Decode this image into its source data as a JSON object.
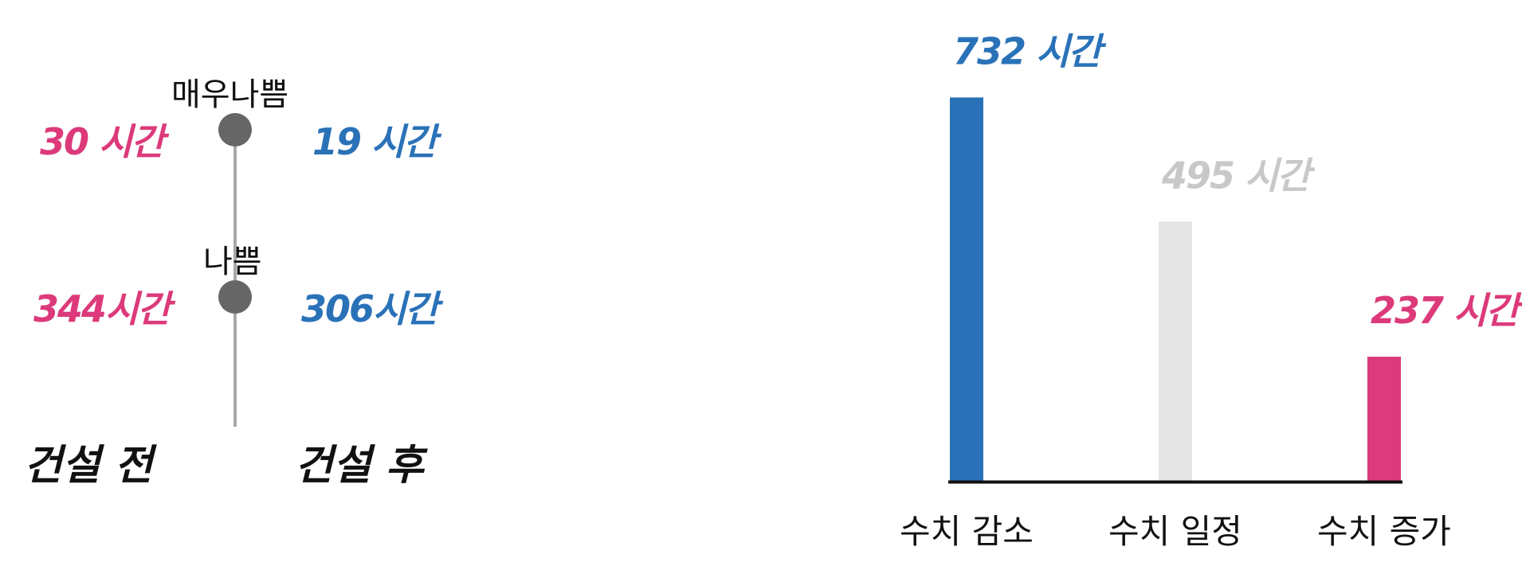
{
  "colors": {
    "decrease": "#2a72b8",
    "constant": "#e5e5e5",
    "increase": "#dc3a7a",
    "constant_label": "#c8c8c8",
    "axis": "#111111"
  },
  "comparison": {
    "before_label": "건설 전",
    "after_label": "건설 후",
    "levels": [
      {
        "name": "매우나쁨",
        "before": "30 시간",
        "after": "19 시간"
      },
      {
        "name": "나쁨",
        "before": "344시간",
        "after": "306시간"
      }
    ]
  },
  "chart_data": {
    "type": "bar",
    "categories": [
      "수치 감소",
      "수치 일정",
      "수치 증가"
    ],
    "values": [
      732,
      495,
      237
    ],
    "value_labels": [
      "732 시간",
      "495 시간",
      "237 시간"
    ],
    "ylim": [
      0,
      760
    ]
  }
}
